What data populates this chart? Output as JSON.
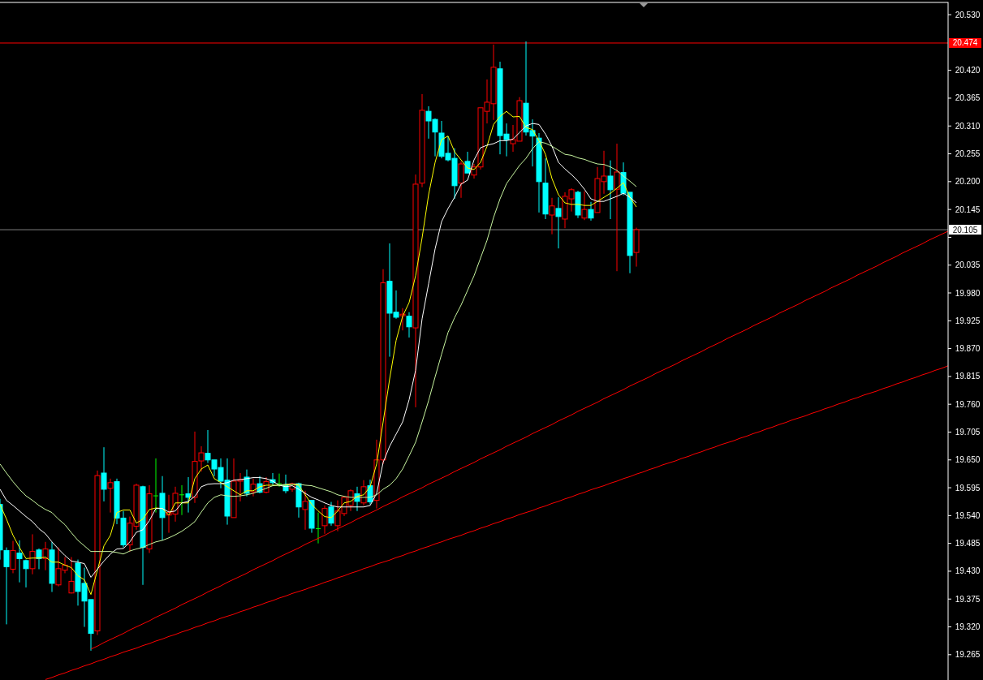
{
  "chart_data": {
    "type": "candlestick",
    "categories": [
      null,
      null,
      null,
      null,
      null,
      null,
      null,
      null,
      null,
      null,
      null,
      null,
      null,
      null,
      null,
      null,
      null,
      null,
      null,
      null,
      null,
      null,
      null,
      null,
      null,
      null,
      null,
      null,
      null,
      null,
      null,
      null,
      null,
      null,
      null,
      null,
      null,
      null,
      null,
      null,
      null,
      null,
      null,
      null,
      null,
      null,
      null,
      null,
      null,
      null,
      null,
      null,
      null,
      null,
      null,
      null,
      null,
      null,
      null,
      null,
      null,
      null,
      null,
      null,
      null,
      null,
      null,
      null,
      null,
      null,
      null,
      null,
      null,
      null,
      null,
      null,
      null,
      null,
      null,
      null,
      null,
      null,
      null,
      null,
      null,
      null,
      null,
      null,
      null,
      null,
      null,
      null,
      null,
      null,
      null,
      null,
      null,
      null,
      null,
      null,
      null,
      null,
      null,
      null,
      null,
      null,
      null,
      null,
      null,
      null,
      null,
      null,
      null,
      null,
      null,
      null,
      null,
      null,
      null,
      null,
      null,
      null,
      null,
      null,
      null,
      null,
      null,
      null,
      null,
      null,
      null,
      null,
      null,
      null,
      null,
      null,
      null,
      null,
      null,
      null,
      null,
      null,
      null,
      null,
      null,
      null,
      null
    ],
    "ohlc": [
      [
        19.562,
        19.573,
        19.453,
        19.472
      ],
      [
        19.471,
        19.477,
        19.325,
        19.439
      ],
      [
        19.434,
        19.49,
        19.426,
        19.471
      ],
      [
        19.466,
        19.491,
        19.408,
        19.455
      ],
      [
        19.451,
        19.453,
        19.398,
        19.435
      ],
      [
        19.435,
        19.503,
        19.424,
        19.469
      ],
      [
        19.472,
        19.475,
        19.434,
        19.455
      ],
      [
        19.455,
        19.488,
        19.432,
        19.474
      ],
      [
        19.472,
        19.488,
        19.389,
        19.406
      ],
      [
        19.403,
        19.477,
        19.4,
        19.435
      ],
      [
        19.432,
        19.458,
        19.426,
        19.442
      ],
      [
        19.387,
        19.458,
        19.386,
        19.41
      ],
      [
        19.446,
        19.453,
        19.362,
        19.39
      ],
      [
        19.406,
        19.437,
        19.32,
        19.371
      ],
      [
        19.374,
        19.374,
        19.273,
        19.307
      ],
      [
        19.312,
        19.629,
        19.304,
        19.619
      ],
      [
        19.624,
        19.675,
        19.568,
        19.592
      ],
      [
        19.594,
        19.613,
        19.546,
        19.605
      ],
      [
        19.607,
        19.613,
        19.523,
        19.535
      ],
      [
        19.535,
        19.549,
        19.477,
        19.482
      ],
      [
        19.482,
        19.538,
        19.469,
        19.525
      ],
      [
        19.519,
        19.603,
        19.512,
        19.6
      ],
      [
        19.597,
        19.599,
        19.403,
        19.477
      ],
      [
        19.474,
        19.6,
        19.466,
        19.583
      ],
      [
        19.579,
        19.653,
        19.546,
        19.579
      ],
      [
        19.584,
        19.618,
        19.491,
        19.536
      ],
      [
        19.541,
        19.581,
        19.506,
        19.546
      ],
      [
        19.543,
        19.597,
        19.528,
        19.584
      ],
      [
        19.581,
        19.6,
        19.541,
        19.581
      ],
      [
        19.583,
        19.616,
        19.546,
        19.576
      ],
      [
        19.576,
        19.706,
        19.565,
        19.647
      ],
      [
        19.648,
        19.677,
        19.627,
        19.664
      ],
      [
        19.663,
        19.709,
        19.644,
        19.65
      ],
      [
        19.65,
        19.65,
        19.618,
        19.632
      ],
      [
        19.635,
        19.653,
        19.594,
        19.608
      ],
      [
        19.61,
        19.653,
        19.522,
        19.539
      ],
      [
        19.536,
        19.653,
        19.536,
        19.608
      ],
      [
        19.608,
        19.624,
        19.568,
        19.611
      ],
      [
        19.616,
        19.631,
        19.578,
        19.584
      ],
      [
        19.587,
        19.613,
        19.578,
        19.602
      ],
      [
        19.603,
        19.618,
        19.584,
        19.586
      ],
      [
        19.586,
        19.616,
        19.584,
        19.607
      ],
      [
        19.611,
        19.624,
        19.6,
        19.605
      ],
      [
        19.603,
        19.623,
        19.597,
        19.603
      ],
      [
        19.6,
        19.621,
        19.584,
        19.589
      ],
      [
        19.592,
        19.605,
        19.587,
        19.603
      ],
      [
        19.603,
        19.605,
        19.536,
        19.557
      ],
      [
        19.552,
        19.589,
        19.512,
        19.568
      ],
      [
        19.57,
        19.57,
        19.506,
        19.515
      ],
      [
        19.514,
        19.546,
        19.485,
        19.514
      ],
      [
        19.52,
        19.56,
        19.504,
        19.554
      ],
      [
        19.557,
        19.567,
        19.52,
        19.525
      ],
      [
        19.52,
        19.57,
        19.509,
        19.549
      ],
      [
        19.544,
        19.578,
        19.539,
        19.576
      ],
      [
        19.56,
        19.592,
        19.549,
        19.589
      ],
      [
        19.583,
        19.597,
        19.549,
        19.568
      ],
      [
        19.565,
        19.61,
        19.56,
        19.597
      ],
      [
        19.599,
        19.611,
        19.562,
        19.567
      ],
      [
        19.57,
        19.69,
        19.554,
        19.65
      ],
      [
        19.65,
        20.027,
        19.642,
        20.0
      ],
      [
        20.003,
        20.078,
        19.854,
        19.94
      ],
      [
        19.942,
        19.985,
        19.929,
        19.932
      ],
      [
        19.935,
        19.95,
        19.906,
        19.938
      ],
      [
        19.934,
        19.942,
        19.892,
        19.913
      ],
      [
        19.911,
        20.214,
        19.754,
        20.195
      ],
      [
        20.197,
        20.373,
        20.189,
        20.341
      ],
      [
        20.339,
        20.349,
        20.285,
        20.32
      ],
      [
        20.323,
        20.325,
        20.25,
        20.298
      ],
      [
        20.296,
        20.32,
        20.246,
        20.25
      ],
      [
        20.256,
        20.29,
        20.24,
        20.243
      ],
      [
        20.246,
        20.266,
        20.166,
        20.192
      ],
      [
        20.197,
        20.24,
        20.168,
        20.235
      ],
      [
        20.24,
        20.259,
        20.217,
        20.217
      ],
      [
        20.213,
        20.235,
        20.206,
        20.229
      ],
      [
        20.229,
        20.346,
        20.224,
        20.346
      ],
      [
        20.339,
        20.402,
        20.315,
        20.357
      ],
      [
        20.354,
        20.471,
        20.322,
        20.426
      ],
      [
        20.423,
        20.437,
        20.254,
        20.291
      ],
      [
        20.294,
        20.315,
        20.25,
        20.283
      ],
      [
        20.275,
        20.312,
        20.259,
        20.283
      ],
      [
        20.28,
        20.367,
        20.28,
        20.36
      ],
      [
        20.355,
        20.477,
        20.291,
        20.298
      ],
      [
        20.301,
        20.323,
        20.23,
        20.29
      ],
      [
        20.286,
        20.296,
        20.139,
        20.2
      ],
      [
        20.197,
        20.246,
        20.126,
        20.136
      ],
      [
        20.134,
        20.168,
        20.096,
        20.152
      ],
      [
        20.147,
        20.169,
        20.068,
        20.131
      ],
      [
        20.126,
        20.179,
        20.108,
        20.171
      ],
      [
        20.166,
        20.187,
        20.141,
        20.184
      ],
      [
        20.179,
        20.182,
        20.128,
        20.134
      ],
      [
        20.128,
        20.181,
        20.124,
        20.145
      ],
      [
        20.145,
        20.16,
        20.123,
        20.128
      ],
      [
        20.139,
        20.229,
        20.139,
        20.206
      ],
      [
        20.2,
        20.261,
        20.176,
        20.211
      ],
      [
        20.211,
        20.242,
        20.126,
        20.184
      ],
      [
        20.185,
        20.275,
        20.023,
        20.219
      ],
      [
        20.218,
        20.238,
        20.173,
        20.177
      ],
      [
        20.179,
        20.179,
        20.019,
        20.054
      ],
      [
        20.06,
        20.109,
        20.032,
        20.105
      ],
      null,
      null,
      null,
      null,
      null,
      null,
      null,
      null,
      null,
      null,
      null,
      null,
      null,
      null,
      null,
      null,
      null,
      null,
      null,
      null,
      null,
      null,
      null,
      null,
      null,
      null,
      null,
      null,
      null,
      null,
      null,
      null,
      null,
      null,
      null,
      null,
      null,
      null,
      null,
      null,
      null,
      null,
      null,
      null,
      null,
      null,
      null,
      null
    ],
    "colors": [
      "#00ffff",
      "#00ffff",
      "#ff0000",
      "#00ffff",
      "#00ffff",
      "#ff0000",
      "#00ffff",
      "#ff0000",
      "#00ffff",
      "#ff0000",
      "#ff0000",
      "#ff0000",
      "#00ffff",
      "#00ffff",
      "#00ffff",
      "#ff0000",
      "#00ffff",
      "#ff0000",
      "#00ffff",
      "#00ffff",
      "#ff0000",
      "#ff0000",
      "#00ffff",
      "#ff0000",
      "#00ff00",
      "#00ffff",
      "#ff0000",
      "#ff0000",
      "#00ff00",
      "#00ffff",
      "#ff0000",
      "#ff0000",
      "#00ffff",
      "#00ffff",
      "#00ffff",
      "#00ffff",
      "#ff0000",
      "#ff0000",
      "#00ffff",
      "#ff0000",
      "#00ffff",
      "#ff0000",
      "#00ffff",
      "#00ff00",
      "#00ffff",
      "#ff0000",
      "#00ffff",
      "#ff0000",
      "#00ffff",
      "#00ff00",
      "#ff0000",
      "#00ffff",
      "#ff0000",
      "#ff0000",
      "#ff0000",
      "#00ffff",
      "#ff0000",
      "#00ffff",
      "#ff0000",
      "#ff0000",
      "#00ffff",
      "#00ffff",
      "#ff0000",
      "#00ffff",
      "#ff0000",
      "#ff0000",
      "#00ffff",
      "#00ffff",
      "#00ffff",
      "#00ffff",
      "#00ffff",
      "#ff0000",
      "#00ffff",
      "#ff0000",
      "#ff0000",
      "#ff0000",
      "#ff0000",
      "#00ffff",
      "#00ffff",
      "#ff0000",
      "#ff0000",
      "#00ffff",
      "#00ffff",
      "#00ffff",
      "#00ffff",
      "#ff0000",
      "#00ffff",
      "#ff0000",
      "#ff0000",
      "#00ffff",
      "#ff0000",
      "#00ffff",
      "#ff0000",
      "#ff0000",
      "#00ffff",
      "#ff0000",
      "#00ffff",
      "#00ffff",
      "#ff0000",
      null,
      null,
      null,
      null,
      null,
      null,
      null,
      null,
      null,
      null,
      null,
      null,
      null,
      null,
      null,
      null,
      null,
      null,
      null,
      null,
      null,
      null,
      null,
      null,
      null,
      null,
      null,
      null,
      null,
      null,
      null,
      null,
      null,
      null,
      null,
      null,
      null,
      null,
      null,
      null,
      null,
      null,
      null,
      null,
      null,
      null,
      null,
      null
    ],
    "series": [
      {
        "type": "line",
        "color": "#ffff00",
        "values": [
          19.562,
          19.533,
          19.501,
          19.477,
          19.455,
          19.456,
          19.456,
          19.458,
          19.448,
          19.448,
          19.442,
          19.437,
          19.421,
          19.413,
          19.384,
          19.432,
          19.48,
          19.501,
          19.546,
          19.551,
          19.551,
          19.525,
          19.533,
          19.552,
          19.555,
          19.554,
          19.541,
          19.565,
          19.565,
          19.565,
          19.613,
          19.632,
          19.64,
          19.613,
          19.605,
          19.597,
          19.589,
          19.581,
          19.589,
          19.589,
          19.597,
          19.6,
          19.6,
          19.6,
          19.6,
          19.602,
          19.6,
          19.581,
          19.562,
          19.549,
          19.538,
          19.536,
          19.549,
          19.565,
          19.568,
          19.578,
          19.581,
          19.597,
          19.642,
          19.725,
          19.81,
          19.886,
          19.934,
          19.961,
          20.014,
          20.089,
          20.174,
          20.238,
          20.283,
          20.29,
          20.259,
          20.243,
          20.227,
          20.224,
          20.238,
          20.27,
          20.313,
          20.329,
          20.339,
          20.328,
          20.329,
          20.307,
          20.303,
          20.281,
          20.254,
          20.206,
          20.174,
          20.158,
          20.155,
          20.155,
          20.153,
          20.153,
          20.161,
          20.169,
          20.177,
          20.187,
          20.198,
          20.169,
          20.15,
          null,
          null,
          null,
          null,
          null,
          null,
          null,
          null,
          null,
          null,
          null,
          null,
          null,
          null,
          null,
          null,
          null,
          null,
          null,
          null,
          null,
          null,
          null,
          null,
          null,
          null,
          null,
          null,
          null,
          null,
          null,
          null,
          null,
          null,
          null,
          null,
          null,
          null,
          null,
          null,
          null,
          null,
          null,
          null,
          null,
          null,
          null,
          null
        ]
      },
      {
        "type": "line",
        "color": "#ffffff",
        "values": [
          19.592,
          19.57,
          19.56,
          19.549,
          19.538,
          19.528,
          19.514,
          19.504,
          19.488,
          19.474,
          19.461,
          19.45,
          19.448,
          19.445,
          19.418,
          19.434,
          19.45,
          19.464,
          19.474,
          19.475,
          19.488,
          19.507,
          19.512,
          19.53,
          19.554,
          19.554,
          19.547,
          19.549,
          19.565,
          19.568,
          19.578,
          19.597,
          19.602,
          19.603,
          19.603,
          19.605,
          19.61,
          19.611,
          19.613,
          19.615,
          19.615,
          19.613,
          19.608,
          19.6,
          19.597,
          19.599,
          19.592,
          19.584,
          19.576,
          19.571,
          19.565,
          19.56,
          19.557,
          19.557,
          19.557,
          19.557,
          19.557,
          19.56,
          19.584,
          19.645,
          19.677,
          19.701,
          19.725,
          19.769,
          19.827,
          19.929,
          19.998,
          20.067,
          20.121,
          20.147,
          20.169,
          20.195,
          20.203,
          20.243,
          20.267,
          20.272,
          20.275,
          20.281,
          20.281,
          20.284,
          20.297,
          20.31,
          20.315,
          20.313,
          20.294,
          20.27,
          20.238,
          20.225,
          20.214,
          20.201,
          20.185,
          20.166,
          20.161,
          20.161,
          20.166,
          20.171,
          20.177,
          20.169,
          20.158,
          null,
          null,
          null,
          null,
          null,
          null,
          null,
          null,
          null,
          null,
          null,
          null,
          null,
          null,
          null,
          null,
          null,
          null,
          null,
          null,
          null,
          null,
          null,
          null,
          null,
          null,
          null,
          null,
          null,
          null,
          null,
          null,
          null,
          null,
          null,
          null,
          null,
          null,
          null,
          null,
          null,
          null,
          null,
          null,
          null,
          null,
          null,
          null
        ]
      },
      {
        "type": "line",
        "color": "#c8f5a0",
        "values": [
          19.642,
          19.624,
          19.607,
          19.592,
          19.579,
          19.57,
          19.56,
          19.552,
          19.546,
          19.533,
          19.522,
          19.506,
          19.491,
          19.48,
          19.469,
          19.469,
          19.469,
          19.469,
          19.467,
          19.464,
          19.47,
          19.474,
          19.477,
          19.483,
          19.488,
          19.491,
          19.496,
          19.502,
          19.509,
          19.518,
          19.528,
          19.547,
          19.565,
          19.576,
          19.581,
          19.579,
          19.578,
          19.579,
          19.581,
          19.584,
          19.589,
          19.594,
          19.599,
          19.6,
          19.602,
          19.602,
          19.602,
          19.6,
          19.599,
          19.595,
          19.591,
          19.587,
          19.581,
          19.578,
          19.576,
          19.576,
          19.576,
          19.576,
          19.581,
          19.592,
          19.6,
          19.613,
          19.632,
          19.658,
          19.685,
          19.725,
          19.767,
          19.814,
          19.859,
          19.902,
          19.931,
          19.956,
          19.985,
          20.014,
          20.049,
          20.084,
          20.129,
          20.166,
          20.196,
          20.214,
          20.232,
          20.246,
          20.265,
          20.279,
          20.276,
          20.27,
          20.262,
          20.254,
          20.252,
          20.247,
          20.244,
          20.239,
          20.235,
          20.234,
          20.229,
          20.222,
          20.211,
          20.201,
          20.19,
          null,
          null,
          null,
          null,
          null,
          null,
          null,
          null,
          null,
          null,
          null,
          null,
          null,
          null,
          null,
          null,
          null,
          null,
          null,
          null,
          null,
          null,
          null,
          null,
          null,
          null,
          null,
          null,
          null,
          null,
          null,
          null,
          null,
          null,
          null,
          null,
          null,
          null,
          null,
          null,
          null,
          null,
          null,
          null,
          null,
          null,
          null,
          null
        ]
      },
      {
        "type": "line",
        "color": "#ff0000",
        "values": [
          null,
          null,
          null,
          null,
          null,
          null,
          null,
          null,
          null,
          null,
          null,
          null,
          null,
          null,
          19.276,
          19.282,
          19.289,
          19.295,
          19.301,
          19.307,
          19.314,
          19.32,
          19.326,
          19.332,
          19.339,
          19.345,
          19.351,
          19.357,
          19.364,
          19.37,
          19.376,
          19.382,
          19.389,
          19.395,
          19.401,
          19.408,
          19.414,
          19.42,
          19.426,
          19.433,
          19.439,
          19.445,
          19.451,
          19.458,
          19.464,
          19.47,
          19.476,
          19.483,
          19.489,
          19.495,
          19.501,
          19.508,
          19.514,
          19.52,
          19.526,
          19.533,
          19.539,
          19.545,
          19.551,
          19.558,
          19.564,
          19.57,
          19.577,
          19.583,
          19.589,
          19.595,
          19.602,
          19.608,
          19.614,
          19.62,
          19.627,
          19.633,
          19.639,
          19.645,
          19.652,
          19.658,
          19.664,
          19.67,
          19.677,
          19.683,
          19.689,
          19.695,
          19.702,
          19.708,
          19.714,
          19.72,
          19.727,
          19.733,
          19.739,
          19.746,
          19.752,
          19.758,
          19.764,
          19.771,
          19.777,
          19.783,
          19.789,
          19.796,
          19.802,
          19.808,
          19.814,
          19.821,
          19.827,
          19.833,
          19.839,
          19.846,
          19.852,
          19.858,
          19.864,
          19.871,
          19.877,
          19.883,
          19.89,
          19.896,
          19.902,
          19.908,
          19.915,
          19.921,
          19.927,
          19.933,
          19.94,
          19.946,
          19.952,
          19.958,
          19.965,
          19.971,
          19.977,
          19.983,
          19.99,
          19.996,
          20.002,
          20.008,
          20.015,
          20.021,
          20.027,
          20.033,
          20.04,
          20.046,
          20.052,
          20.059,
          20.065,
          20.071,
          20.077,
          20.084,
          20.09,
          20.096,
          20.102
        ]
      },
      {
        "type": "line",
        "color": "#ff0000",
        "values": [
          null,
          null,
          null,
          null,
          null,
          null,
          null,
          19.216,
          19.22,
          19.225,
          19.229,
          19.234,
          19.238,
          19.243,
          19.247,
          19.252,
          19.256,
          19.261,
          19.265,
          19.27,
          19.274,
          19.278,
          19.283,
          19.287,
          19.292,
          19.296,
          19.301,
          19.305,
          19.31,
          19.314,
          19.319,
          19.323,
          19.328,
          19.332,
          19.337,
          19.341,
          19.345,
          19.35,
          19.354,
          19.359,
          19.363,
          19.368,
          19.372,
          19.377,
          19.381,
          19.386,
          19.39,
          19.394,
          19.399,
          19.403,
          19.408,
          19.412,
          19.417,
          19.421,
          19.426,
          19.43,
          19.435,
          19.439,
          19.444,
          19.448,
          19.452,
          19.457,
          19.461,
          19.466,
          19.47,
          19.475,
          19.479,
          19.484,
          19.488,
          19.493,
          19.497,
          19.501,
          19.506,
          19.51,
          19.515,
          19.519,
          19.524,
          19.528,
          19.533,
          19.537,
          19.542,
          19.546,
          19.55,
          19.555,
          19.559,
          19.564,
          19.568,
          19.573,
          19.577,
          19.582,
          19.586,
          19.591,
          19.595,
          19.599,
          19.604,
          19.608,
          19.613,
          19.617,
          19.622,
          19.626,
          19.631,
          19.635,
          19.64,
          19.644,
          19.648,
          19.653,
          19.657,
          19.662,
          19.666,
          19.671,
          19.675,
          19.68,
          19.684,
          19.688,
          19.693,
          19.697,
          19.702,
          19.706,
          19.711,
          19.715,
          19.72,
          19.724,
          19.729,
          19.733,
          19.737,
          19.742,
          19.746,
          19.751,
          19.755,
          19.76,
          19.764,
          19.769,
          19.773,
          19.778,
          19.782,
          19.786,
          19.791,
          19.795,
          19.8,
          19.804,
          19.809,
          19.813,
          19.818,
          19.822,
          19.827,
          19.831,
          19.836
        ]
      }
    ],
    "ylim": [
      19.215,
      20.559
    ],
    "yticks": [
      {
        "value": 20.53,
        "label": "20.530"
      },
      {
        "value": 20.42,
        "label": "20.420"
      },
      20.365,
      {
        "value": 20.31,
        "label": "20.310"
      },
      20.255,
      {
        "value": 20.2,
        "label": "20.200"
      },
      20.145,
      {
        "value": 20.09,
        "label": null
      },
      20.035,
      {
        "value": 19.98,
        "label": "19.980"
      },
      19.925,
      {
        "value": 19.87,
        "label": "19.870"
      },
      19.815,
      {
        "value": 19.76,
        "label": "19.760"
      },
      19.705,
      {
        "value": 19.65,
        "label": "19.650"
      },
      19.595,
      {
        "value": 19.54,
        "label": "19.540"
      },
      19.485,
      {
        "value": 19.43,
        "label": "19.430"
      },
      19.375,
      {
        "value": 19.32,
        "label": "19.320"
      },
      19.265
    ],
    "ref_lines": [
      {
        "axis": "y",
        "value": 20.474,
        "label": "20.474",
        "color": "#ff0000"
      },
      {
        "axis": "y",
        "value": 20.105,
        "label": "20.105",
        "color": "#808080"
      }
    ],
    "grid": false,
    "tick_labels": "y"
  }
}
